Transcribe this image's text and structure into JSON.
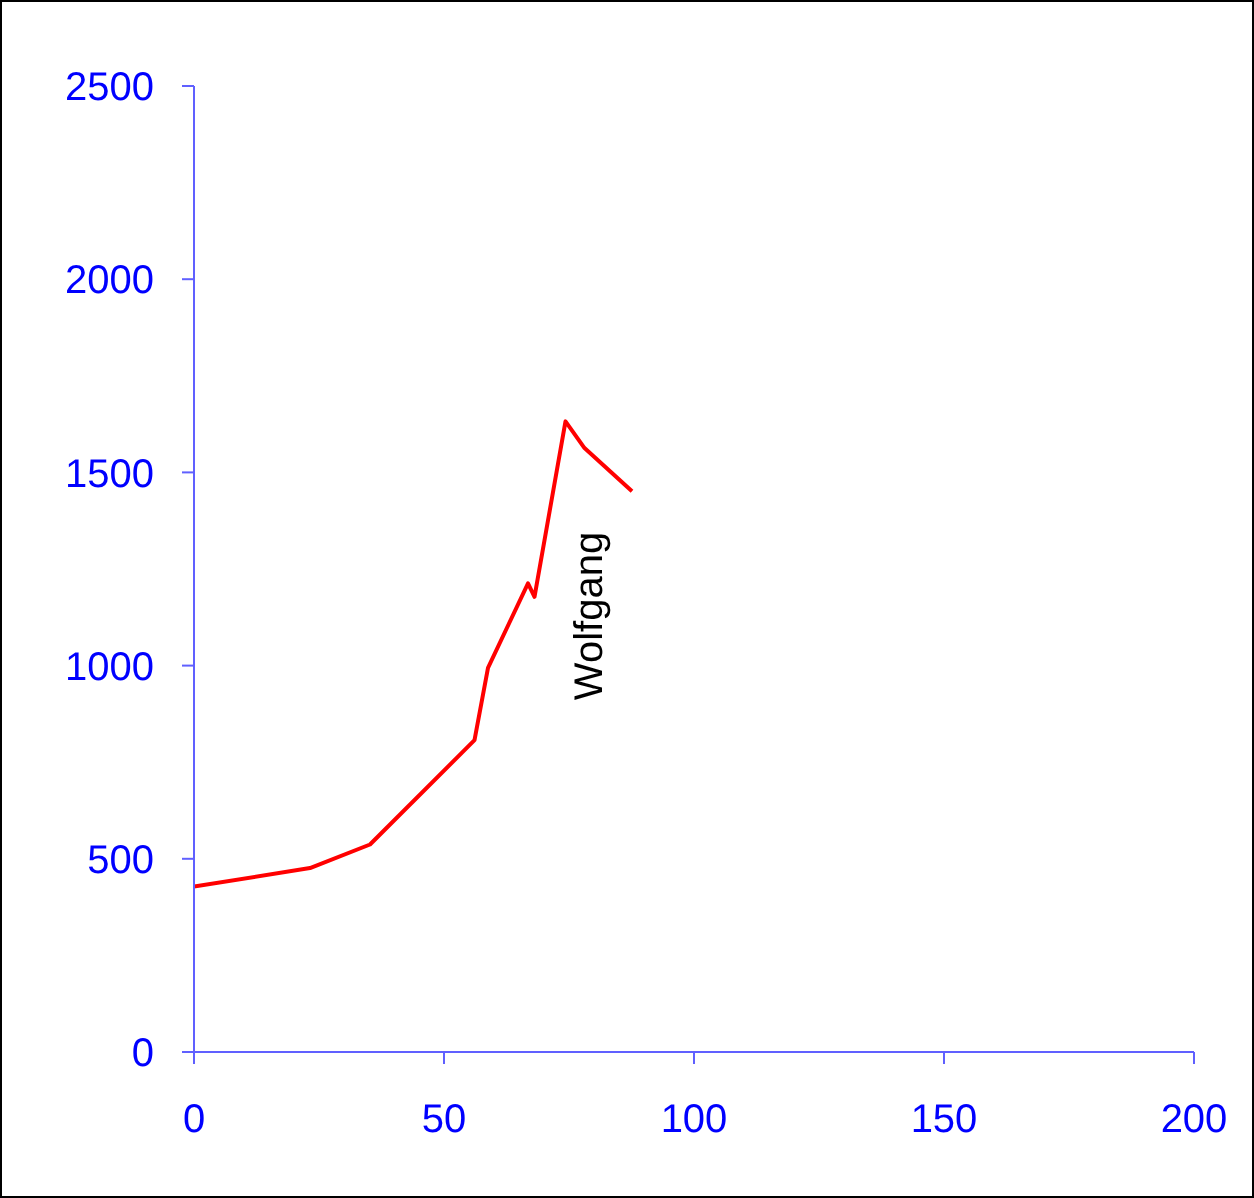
{
  "chart_data": {
    "type": "line",
    "x": [
      0,
      23.2,
      35.2,
      56.1,
      58.8,
      66.8,
      68.1,
      74.3,
      78.1,
      87.6
    ],
    "series": [
      {
        "name": "Wolfgang",
        "color": "#ff0000",
        "values": [
          428,
          476,
          537,
          807,
          994,
          1213,
          1178,
          1632,
          1563,
          1451
        ]
      }
    ],
    "xlim": [
      0,
      200
    ],
    "xticks": [
      0,
      50,
      100,
      150,
      200
    ],
    "ylim": [
      0,
      2500
    ],
    "yticks": [
      0,
      500,
      1000,
      1500,
      2000,
      2500
    ],
    "grid": false,
    "legend": false,
    "marker": "none",
    "line_style": "solid"
  }
}
